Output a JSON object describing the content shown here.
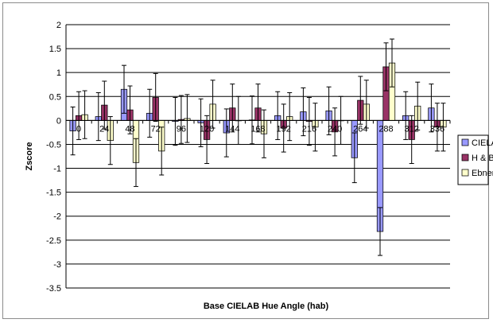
{
  "chart_data": {
    "type": "bar",
    "title": "",
    "xlabel": "Base CIELAB Hue Angle (hab)",
    "ylabel": "Zscore",
    "ylim": [
      -3.5,
      2
    ],
    "ytick_step": 0.5,
    "grid": true,
    "legend_position": "right",
    "categories": [
      "0",
      "24",
      "48",
      "72",
      "96",
      "120",
      "144",
      "168",
      "192",
      "216",
      "240",
      "264",
      "288",
      "312",
      "336"
    ],
    "series": [
      {
        "name": "CIELAB",
        "color": "#9999ff",
        "values": [
          -0.22,
          0.08,
          0.65,
          0.15,
          -0.02,
          -0.05,
          -0.26,
          0.01,
          0.1,
          0.18,
          0.2,
          -0.78,
          -2.32,
          0.1,
          0.26
        ],
        "error": [
          0.5,
          0.5,
          0.5,
          0.5,
          0.5,
          0.5,
          0.5,
          0.5,
          0.5,
          0.5,
          0.5,
          0.52,
          0.5,
          0.5,
          0.5
        ]
      },
      {
        "name": "H & B",
        "color": "#993366",
        "values": [
          0.1,
          0.32,
          0.22,
          0.48,
          0.02,
          -0.4,
          0.26,
          0.26,
          -0.16,
          -0.02,
          -0.24,
          0.42,
          1.12,
          -0.4,
          -0.14
        ],
        "error": [
          0.5,
          0.5,
          0.5,
          0.5,
          0.5,
          0.5,
          0.5,
          0.5,
          0.5,
          0.5,
          0.5,
          0.5,
          0.5,
          0.5,
          0.5
        ]
      },
      {
        "name": "Ebner",
        "color": "#ffffcc",
        "values": [
          0.12,
          -0.42,
          -0.88,
          -0.64,
          0.04,
          0.34,
          0.0,
          -0.28,
          0.08,
          -0.14,
          0.0,
          0.34,
          1.2,
          0.3,
          -0.14
        ],
        "error": [
          0.5,
          0.5,
          0.5,
          0.5,
          0.5,
          0.5,
          0.5,
          0.5,
          0.5,
          0.5,
          0.5,
          0.5,
          0.5,
          0.5,
          0.5
        ]
      }
    ]
  }
}
